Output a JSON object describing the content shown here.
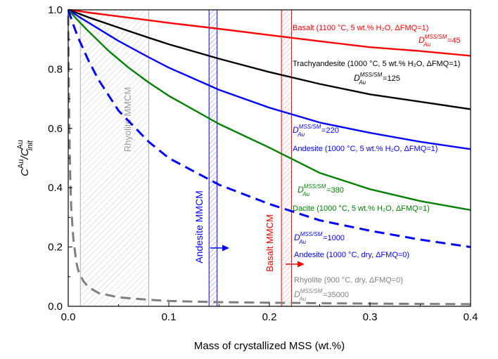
{
  "chart_data": {
    "type": "line",
    "xlabel": "Mass of crystallized MSS (wt.%)",
    "ylabel": {
      "main": "C",
      "sup1": "Au",
      "slash": "/C",
      "sup2": "Au",
      "sub2": "init"
    },
    "xlim": [
      0,
      0.4
    ],
    "ylim": [
      0,
      1.0
    ],
    "xticks": [
      "0.0",
      "0.1",
      "0.2",
      "0.3",
      "0.4"
    ],
    "yticks": [
      "0.0",
      "0.2",
      "0.4",
      "0.6",
      "0.8",
      "1.0"
    ],
    "grid": false,
    "series": [
      {
        "D": 45,
        "color": "#ff0000",
        "dash": false,
        "x": [
          0,
          0.01,
          0.02,
          0.05,
          0.08,
          0.1,
          0.15,
          0.2,
          0.25,
          0.3,
          0.35,
          0.4
        ],
        "y": [
          1.0,
          0.996,
          0.991,
          0.978,
          0.965,
          0.956,
          0.936,
          0.915,
          0.894,
          0.874,
          0.861,
          0.845
        ]
      },
      {
        "D": 125,
        "color": "#000000",
        "dash": false,
        "x": [
          0,
          0.01,
          0.02,
          0.05,
          0.08,
          0.1,
          0.15,
          0.2,
          0.25,
          0.3,
          0.35,
          0.4
        ],
        "y": [
          1.0,
          0.988,
          0.975,
          0.94,
          0.906,
          0.884,
          0.835,
          0.79,
          0.75,
          0.715,
          0.69,
          0.665
        ]
      },
      {
        "D": 220,
        "color": "#0000ff",
        "dash": false,
        "x": [
          0,
          0.01,
          0.02,
          0.05,
          0.08,
          0.1,
          0.15,
          0.2,
          0.25,
          0.3,
          0.35,
          0.4
        ],
        "y": [
          1.0,
          0.978,
          0.957,
          0.895,
          0.84,
          0.805,
          0.73,
          0.67,
          0.62,
          0.585,
          0.555,
          0.53
        ]
      },
      {
        "D": 380,
        "color": "#008000",
        "dash": false,
        "x": [
          0,
          0.01,
          0.02,
          0.04,
          0.06,
          0.08,
          0.1,
          0.15,
          0.2,
          0.25,
          0.3,
          0.35,
          0.4
        ],
        "y": [
          1.0,
          0.963,
          0.928,
          0.862,
          0.805,
          0.755,
          0.71,
          0.615,
          0.535,
          0.45,
          0.395,
          0.355,
          0.325
        ]
      },
      {
        "D": 1000,
        "color": "#0000ff",
        "dash": true,
        "x": [
          0,
          0.005,
          0.01,
          0.02,
          0.03,
          0.05,
          0.08,
          0.1,
          0.15,
          0.2,
          0.25,
          0.3,
          0.35,
          0.4
        ],
        "y": [
          1.0,
          0.95,
          0.905,
          0.83,
          0.765,
          0.66,
          0.555,
          0.5,
          0.41,
          0.345,
          0.29,
          0.255,
          0.225,
          0.2
        ]
      },
      {
        "D": 35000,
        "color": "#7f7f7f",
        "dash": true,
        "x": [
          0,
          0.001,
          0.002,
          0.003,
          0.005,
          0.008,
          0.01,
          0.015,
          0.02,
          0.03,
          0.05,
          0.08,
          0.1,
          0.15,
          0.2,
          0.3,
          0.4
        ],
        "y": [
          0.98,
          0.62,
          0.43,
          0.33,
          0.23,
          0.15,
          0.12,
          0.085,
          0.065,
          0.045,
          0.03,
          0.022,
          0.018,
          0.014,
          0.012,
          0.009,
          0.007
        ]
      }
    ],
    "labels": [
      {
        "text": "Basalt (1100 °C, 5 wt.% H₂O, ΔFMQ=1)",
        "color": "#ff0000"
      },
      {
        "text": "=45",
        "color": "#ff0000",
        "d": true
      },
      {
        "text": "Trachyandesite (1000 °C, 5 wt.% H₂O, ΔFMQ=1)",
        "color": "#000000"
      },
      {
        "text": "=125",
        "color": "#000000",
        "d": true
      },
      {
        "text": "=220",
        "color": "#0000ff",
        "d": true
      },
      {
        "text": "Andesite (1000 °C, 5 wt.% H₂O, ΔFMQ=1)",
        "color": "#0000ff"
      },
      {
        "text": "=380",
        "color": "#008000",
        "d": true
      },
      {
        "text": "Dacite (1000 °C, 5 wt.% H₂O, ΔFMQ=1)",
        "color": "#008000"
      },
      {
        "text": "=1000",
        "color": "#0000ff",
        "d": true
      },
      {
        "text": "Andesite (1000 °C, dry, ΔFMQ=0)",
        "color": "#0000ff"
      },
      {
        "text": "Rhyolite (900 °C, dry, ΔFMQ=0)",
        "color": "#7f7f7f"
      },
      {
        "text": "=35000",
        "color": "#7f7f7f",
        "d": true
      }
    ],
    "d_symbol": {
      "main": "D",
      "sup": "MSS/SM",
      "sub": "Au"
    },
    "bands": [
      {
        "name": "Rhyolite MMCM",
        "x0": 0.012,
        "x1": 0.08,
        "color": "#9a9a9a",
        "arrow": false
      },
      {
        "name": "Andesite MMCM",
        "x0": 0.14,
        "x1": 0.148,
        "color": "#0000ff",
        "arrow": true
      },
      {
        "name": "Basalt MMCM",
        "x0": 0.212,
        "x1": 0.222,
        "color": "#ff0000",
        "arrow": true
      }
    ]
  }
}
